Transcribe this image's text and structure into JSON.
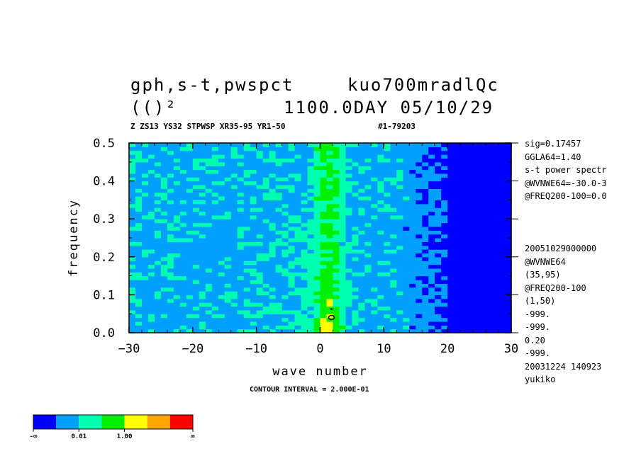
{
  "header": {
    "title_left": "gph,s-t,pwspct",
    "title_right": "kuo700mradlQc",
    "subtitle_left": "(()²",
    "subtitle_right": "1100.0DAY 05/10/29",
    "info_line": "Z ZS13 YS32 STPWSP XR35-95 YR1-50",
    "info_id": "#1-79203"
  },
  "side_text": [
    "sig=0.17457",
    "GGLA64=1.40",
    "s-t power spectr",
    "@WVNWE64=-30.0-3",
    "@FREQ200-100=0.0",
    "",
    "",
    "",
    "20051029000000",
    "@WVNWE64",
    "(35,95)",
    "@FREQ200-100",
    "(1,50)",
    "-999.",
    "-999.",
    "0.20",
    "-999.",
    "20031224 140923",
    "yukiko"
  ],
  "footer": {
    "contour_interval": "CONTOUR INTERVAL = 2.000E-01"
  },
  "colorbar": {
    "colors": [
      "#0000ff",
      "#00a0ff",
      "#00ffb0",
      "#00f000",
      "#ffff00",
      "#ffa500",
      "#ff0000"
    ],
    "labels": [
      "-∞",
      "0.01",
      "1.00",
      "∞"
    ]
  },
  "chart_data": {
    "type": "heatmap",
    "xlabel": "wave number",
    "ylabel": "frequency",
    "xlim": [
      -30,
      30
    ],
    "ylim": [
      0.0,
      0.5
    ],
    "xticks": [
      -30,
      -20,
      -10,
      0,
      10,
      20,
      30
    ],
    "yticks": [
      0.0,
      0.1,
      0.2,
      0.3,
      0.4,
      0.5
    ],
    "xtick_labels": [
      "−30",
      "−20",
      "−10",
      "0",
      "10",
      "20",
      "30"
    ],
    "ytick_labels": [
      "0.0",
      "0.1",
      "0.2",
      "0.3",
      "0.4",
      "0.5"
    ],
    "description_levels": [
      "blue < 0.01",
      "light-blue",
      "cyan",
      "green ~1.00",
      "yellow",
      "orange",
      "red"
    ],
    "peak": {
      "x": 1,
      "y": 0.04
    }
  }
}
